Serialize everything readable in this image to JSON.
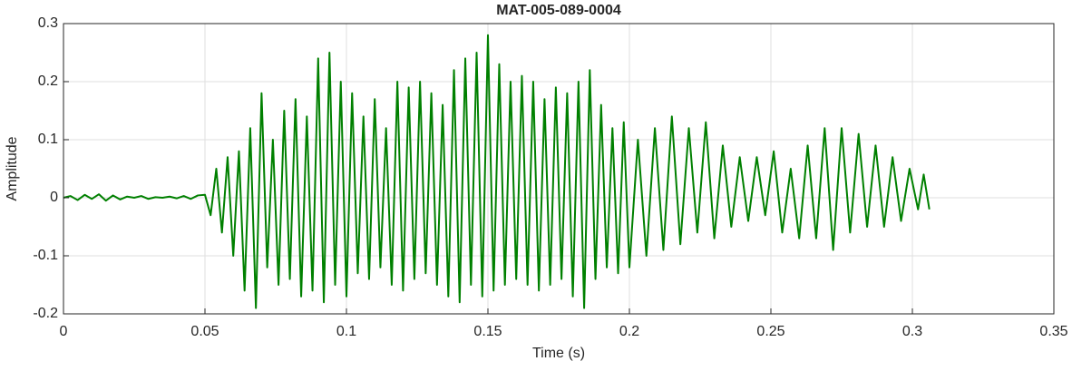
{
  "chart_data": {
    "type": "line",
    "title": "MAT-005-089-0004",
    "xlabel": "Time (s)",
    "ylabel": "Amplitude",
    "xlim": [
      0,
      0.35
    ],
    "ylim": [
      -0.2,
      0.3
    ],
    "xticks": [
      0,
      0.05,
      0.1,
      0.15,
      0.2,
      0.25,
      0.3,
      0.35
    ],
    "yticks": [
      -0.2,
      -0.1,
      0,
      0.1,
      0.2,
      0.3
    ],
    "grid": true,
    "series": [
      {
        "color": "#008000",
        "x": [
          0,
          0.0025,
          0.005,
          0.0075,
          0.01,
          0.0125,
          0.015,
          0.0175,
          0.02,
          0.0225,
          0.025,
          0.0275,
          0.03,
          0.0325,
          0.035,
          0.0375,
          0.04,
          0.0425,
          0.045,
          0.0475,
          0.05,
          0.052,
          0.054,
          0.056,
          0.058,
          0.06,
          0.062,
          0.064,
          0.066,
          0.068,
          0.07,
          0.072,
          0.074,
          0.076,
          0.078,
          0.08,
          0.082,
          0.084,
          0.086,
          0.088,
          0.09,
          0.092,
          0.094,
          0.096,
          0.098,
          0.1,
          0.102,
          0.104,
          0.106,
          0.108,
          0.11,
          0.112,
          0.114,
          0.116,
          0.118,
          0.12,
          0.122,
          0.124,
          0.126,
          0.128,
          0.13,
          0.132,
          0.134,
          0.136,
          0.138,
          0.14,
          0.142,
          0.144,
          0.146,
          0.148,
          0.15,
          0.152,
          0.154,
          0.156,
          0.158,
          0.16,
          0.162,
          0.164,
          0.166,
          0.168,
          0.17,
          0.172,
          0.174,
          0.176,
          0.178,
          0.18,
          0.182,
          0.184,
          0.186,
          0.188,
          0.19,
          0.192,
          0.194,
          0.196,
          0.198,
          0.2,
          0.203,
          0.206,
          0.209,
          0.212,
          0.215,
          0.218,
          0.221,
          0.224,
          0.227,
          0.23,
          0.233,
          0.236,
          0.239,
          0.242,
          0.245,
          0.248,
          0.251,
          0.254,
          0.257,
          0.26,
          0.263,
          0.266,
          0.269,
          0.272,
          0.275,
          0.278,
          0.281,
          0.284,
          0.287,
          0.29,
          0.293,
          0.296,
          0.299,
          0.302,
          0.304,
          0.306
        ],
        "values": [
          0,
          0.003,
          -0.004,
          0.005,
          -0.002,
          0.006,
          -0.005,
          0.004,
          -0.003,
          0.002,
          0,
          0.003,
          -0.002,
          0.001,
          0,
          0.002,
          -0.001,
          0.003,
          -0.002,
          0.004,
          0.005,
          -0.03,
          0.05,
          -0.06,
          0.07,
          -0.1,
          0.08,
          -0.16,
          0.12,
          -0.19,
          0.18,
          -0.12,
          0.1,
          -0.15,
          0.15,
          -0.14,
          0.17,
          -0.17,
          0.14,
          -0.16,
          0.24,
          -0.18,
          0.25,
          -0.15,
          0.2,
          -0.17,
          0.18,
          -0.13,
          0.14,
          -0.14,
          0.17,
          -0.12,
          0.12,
          -0.15,
          0.2,
          -0.16,
          0.19,
          -0.14,
          0.2,
          -0.13,
          0.18,
          -0.15,
          0.16,
          -0.17,
          0.22,
          -0.18,
          0.24,
          -0.15,
          0.25,
          -0.17,
          0.28,
          -0.16,
          0.23,
          -0.15,
          0.2,
          -0.14,
          0.21,
          -0.15,
          0.2,
          -0.16,
          0.17,
          -0.15,
          0.19,
          -0.14,
          0.18,
          -0.17,
          0.2,
          -0.19,
          0.22,
          -0.14,
          0.16,
          -0.12,
          0.12,
          -0.13,
          0.13,
          -0.12,
          0.1,
          -0.1,
          0.12,
          -0.09,
          0.14,
          -0.08,
          0.12,
          -0.06,
          0.13,
          -0.07,
          0.09,
          -0.05,
          0.07,
          -0.04,
          0.07,
          -0.03,
          0.08,
          -0.06,
          0.05,
          -0.07,
          0.09,
          -0.07,
          0.12,
          -0.09,
          0.12,
          -0.06,
          0.11,
          -0.05,
          0.09,
          -0.05,
          0.07,
          -0.04,
          0.05,
          -0.02,
          0.04,
          -0.02
        ]
      }
    ]
  }
}
